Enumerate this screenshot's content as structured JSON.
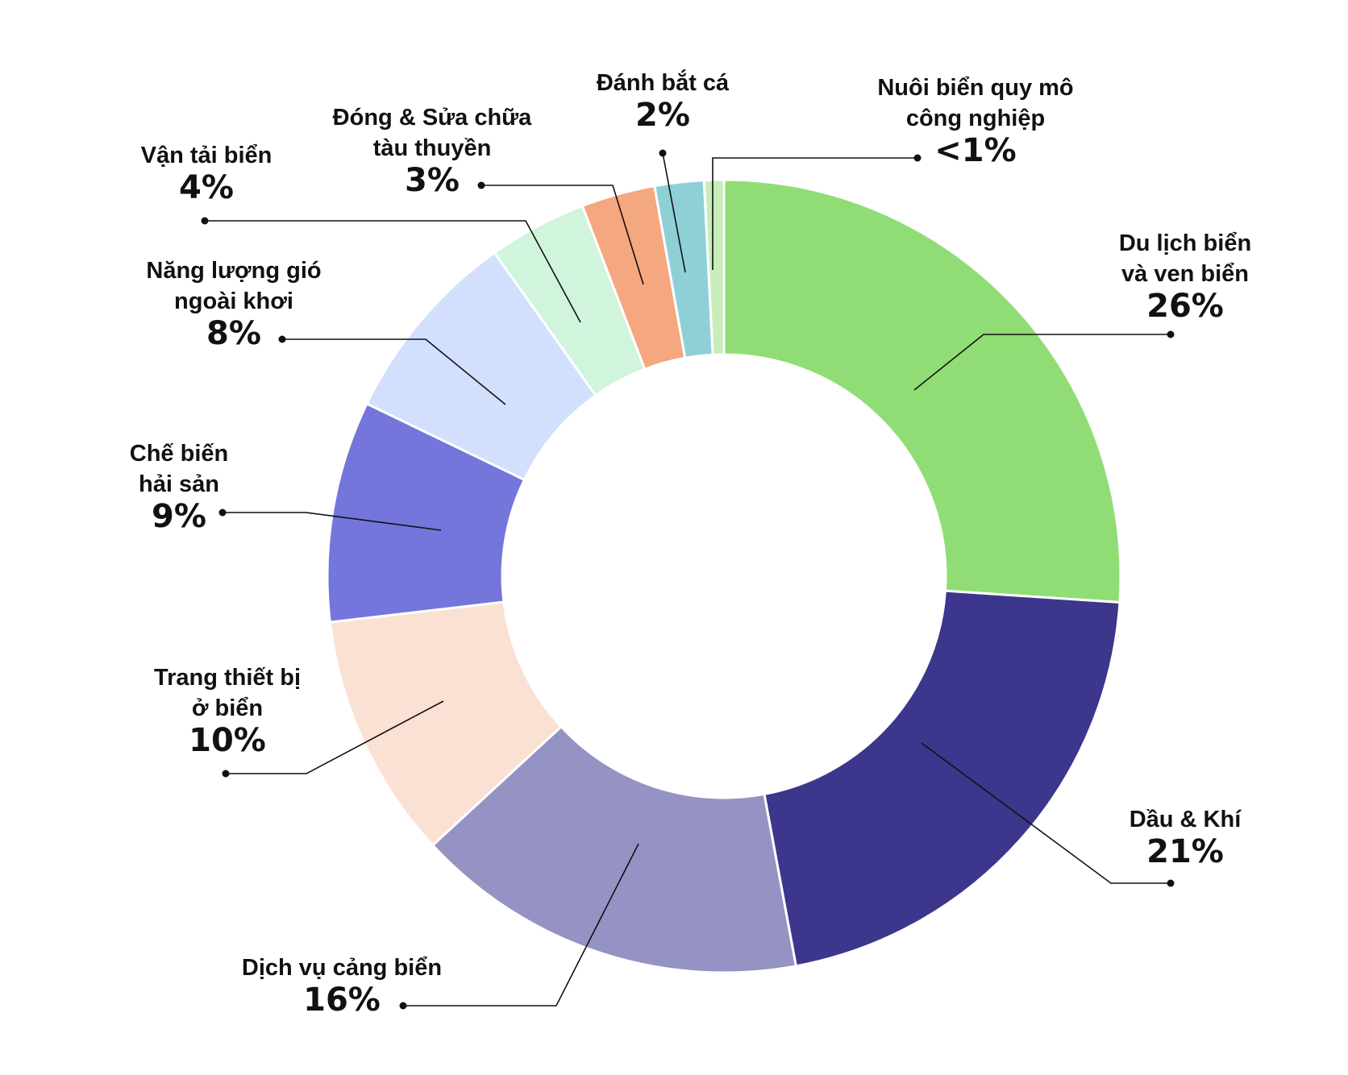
{
  "chart_data": {
    "type": "pie",
    "variant": "donut",
    "title": "",
    "slices": [
      {
        "label_lines": [
          "Du lịch biển",
          "và ven biển"
        ],
        "value_label": "26%",
        "value": 26,
        "color": "#90dd75"
      },
      {
        "label_lines": [
          "Dầu & Khí"
        ],
        "value_label": "21%",
        "value": 21,
        "color": "#3c368c"
      },
      {
        "label_lines": [
          "Dịch vụ cảng biển"
        ],
        "value_label": "16%",
        "value": 16,
        "color": "#9593c3"
      },
      {
        "label_lines": [
          "Trang thiết bị",
          "ở biển"
        ],
        "value_label": "10%",
        "value": 10,
        "color": "#fbe0d4"
      },
      {
        "label_lines": [
          "Chế biến",
          "hải sản"
        ],
        "value_label": "9%",
        "value": 9,
        "color": "#7476db"
      },
      {
        "label_lines": [
          "Năng lượng gió",
          "ngoài khơi"
        ],
        "value_label": "8%",
        "value": 8,
        "color": "#d2dffd"
      },
      {
        "label_lines": [
          "Vận tải biển"
        ],
        "value_label": "4%",
        "value": 4,
        "color": "#d1f4dc"
      },
      {
        "label_lines": [
          "Đóng & Sửa chữa",
          "tàu thuyền"
        ],
        "value_label": "3%",
        "value": 3,
        "color": "#f5a77f"
      },
      {
        "label_lines": [
          "Đánh bắt cá"
        ],
        "value_label": "2%",
        "value": 2,
        "color": "#8fd0d7"
      },
      {
        "label_lines": [
          "Nuôi biển quy mô",
          "công nghiệp"
        ],
        "value_label": "<1%",
        "value": 0.8,
        "color": "#c7eeb9"
      }
    ],
    "legend": "none",
    "start_angle": "12 o'clock",
    "direction": "clockwise"
  }
}
